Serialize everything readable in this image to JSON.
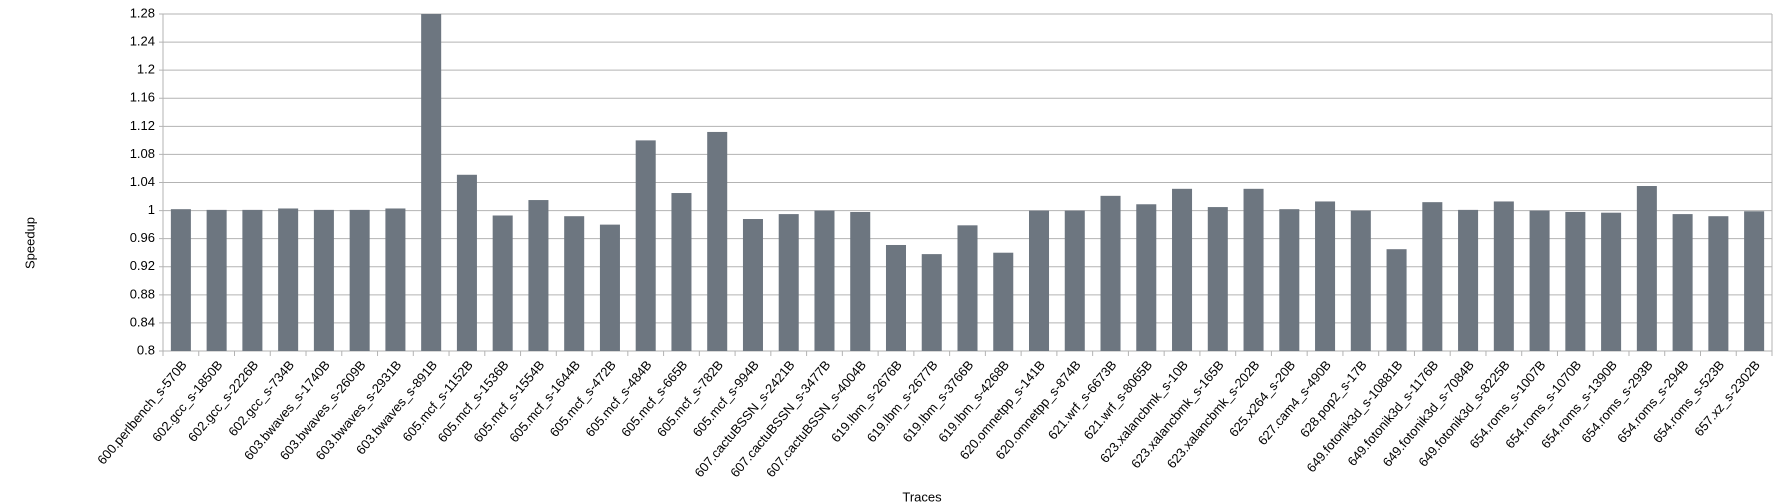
{
  "chart_data": {
    "type": "bar",
    "x_label": "Traces",
    "y_label": "Speedup",
    "categories": [
      "600.perlbench_s-570B",
      "602.gcc_s-1850B",
      "602.gcc_s-2226B",
      "602.gcc_s-734B",
      "603.bwaves_s-1740B",
      "603.bwaves_s-2609B",
      "603.bwaves_s-2931B",
      "603.bwaves_s-891B",
      "605.mcf_s-1152B",
      "605.mcf_s-1536B",
      "605.mcf_s-1554B",
      "605.mcf_s-1644B",
      "605.mcf_s-472B",
      "605.mcf_s-484B",
      "605.mcf_s-665B",
      "605.mcf_s-782B",
      "605.mcf_s-994B",
      "607.cactuBSSN_s-2421B",
      "607.cactuBSSN_s-3477B",
      "607.cactuBSSN_s-4004B",
      "619.lbm_s-2676B",
      "619.lbm_s-2677B",
      "619.lbm_s-3766B",
      "619.lbm_s-4268B",
      "620.omnetpp_s-141B",
      "620.omnetpp_s-874B",
      "621.wrf_s-6673B",
      "621.wrf_s-8065B",
      "623.xalancbmk_s-10B",
      "623.xalancbmk_s-165B",
      "623.xalancbmk_s-202B",
      "625.x264_s-20B",
      "627.cam4_s-490B",
      "628.pop2_s-17B",
      "649.fotonik3d_s-10881B",
      "649.fotonik3d_s-1176B",
      "649.fotonik3d_s-7084B",
      "649.fotonik3d_s-8225B",
      "654.roms_s-1007B",
      "654.roms_s-1070B",
      "654.roms_s-1390B",
      "654.roms_s-293B",
      "654.roms_s-294B",
      "654.roms_s-523B",
      "657.xz_s-2302B"
    ],
    "values": [
      1.002,
      1.001,
      1.001,
      1.003,
      1.001,
      1.001,
      1.003,
      1.28,
      1.051,
      0.993,
      1.015,
      0.992,
      0.98,
      1.1,
      1.025,
      1.112,
      0.988,
      0.995,
      1.0,
      0.998,
      0.951,
      0.938,
      0.979,
      0.94,
      1.0,
      1.0,
      1.021,
      1.009,
      1.031,
      1.005,
      1.031,
      1.002,
      1.013,
      1.0,
      0.945,
      1.012,
      1.001,
      1.013,
      1.0,
      0.998,
      0.997,
      1.035,
      0.995,
      0.992,
      0.999
    ],
    "color": "#6d7680",
    "ylim": [
      0.8,
      1.28
    ],
    "yticks": [
      0.8,
      0.84,
      0.88,
      0.92,
      0.96,
      1,
      1.04,
      1.08,
      1.12,
      1.16,
      1.2,
      1.24,
      1.28
    ],
    "grid": true
  }
}
